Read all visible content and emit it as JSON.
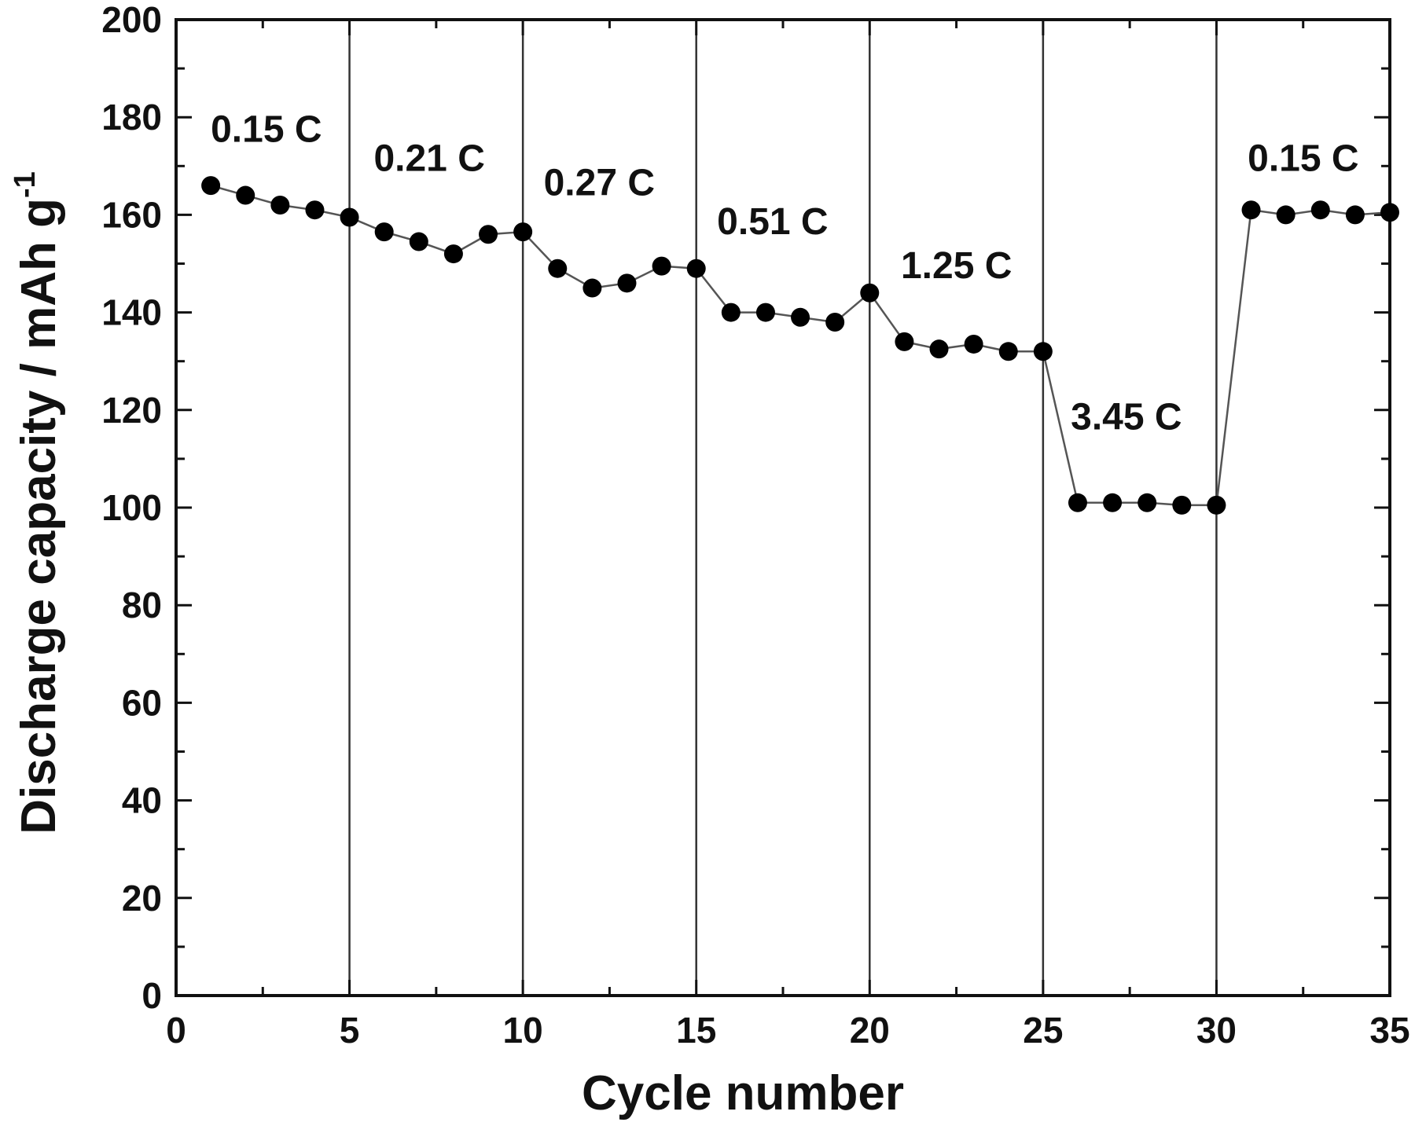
{
  "chart_data": {
    "type": "scatter",
    "title": "",
    "xlabel": "Cycle number",
    "ylabel": "Discharge capacity / mAh g",
    "ylabel_superscript": "-1",
    "xlim": [
      0,
      35
    ],
    "ylim": [
      0,
      200
    ],
    "x_ticks": [
      "0",
      "5",
      "10",
      "15",
      "20",
      "25",
      "30",
      "35"
    ],
    "y_ticks": [
      "0",
      "20",
      "40",
      "60",
      "80",
      "100",
      "120",
      "140",
      "160",
      "180",
      "200"
    ],
    "grid": false,
    "marker_color": "#000000",
    "line_color": "#555555",
    "series": [
      {
        "x": [
          1,
          2,
          3,
          4,
          5,
          6,
          7,
          8,
          9,
          10,
          11,
          12,
          13,
          14,
          15,
          16,
          17,
          18,
          19,
          20,
          21,
          22,
          23,
          24,
          25,
          26,
          27,
          28,
          29,
          30,
          31,
          32,
          33,
          34,
          35
        ],
        "y": [
          166,
          164,
          162,
          161,
          159.5,
          156.5,
          154.5,
          152,
          156,
          156.5,
          149,
          145,
          146,
          149.5,
          149,
          140,
          140,
          139,
          138,
          144,
          134,
          132.5,
          133.5,
          132,
          132,
          101,
          101,
          101,
          100.5,
          100.5,
          161,
          160,
          161,
          160,
          160.5
        ]
      }
    ],
    "vertical_lines": [
      5,
      10,
      15,
      20,
      25,
      30
    ],
    "annotations": [
      {
        "text": "0.15 C",
        "x": 1,
        "y": 175
      },
      {
        "text": "0.21 C",
        "x": 5.7,
        "y": 169
      },
      {
        "text": "0.27 C",
        "x": 10.6,
        "y": 164
      },
      {
        "text": "0.51 C",
        "x": 15.6,
        "y": 156
      },
      {
        "text": "1.25 C",
        "x": 20.9,
        "y": 147
      },
      {
        "text": "3.45 C",
        "x": 25.8,
        "y": 116
      },
      {
        "text": "0.15 C",
        "x": 30.9,
        "y": 169
      }
    ]
  }
}
